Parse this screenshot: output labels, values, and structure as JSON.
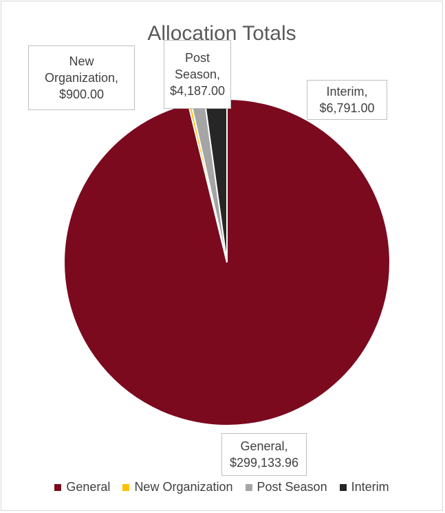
{
  "chart_data": {
    "type": "pie",
    "title": "Allocation Totals",
    "categories": [
      "General",
      "New Organization",
      "Post Season",
      "Interim"
    ],
    "values": [
      299133.96,
      900.0,
      4187.0,
      6791.0
    ],
    "colors": [
      "#7b0a1e",
      "#ffc000",
      "#a5a5a5",
      "#262626"
    ],
    "data_labels": [
      {
        "name": "General,",
        "value": "$299,133.96"
      },
      {
        "name": "New Organization,",
        "value": "$900.00"
      },
      {
        "name": "Post Season,",
        "value": "$4,187.00"
      },
      {
        "name": "Interim,",
        "value": "$6,791.00"
      }
    ],
    "legend": {
      "position": "bottom",
      "items": [
        "General",
        "New Organization",
        "Post Season",
        "Interim"
      ]
    }
  }
}
